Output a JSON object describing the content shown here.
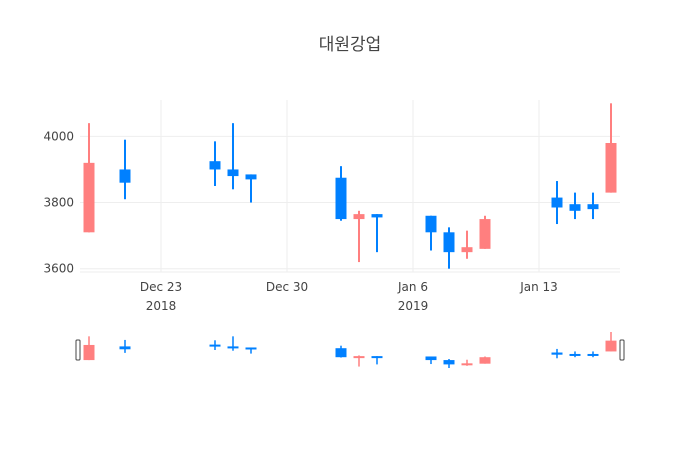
{
  "chart_data": {
    "type": "candlestick",
    "title": "대원강업",
    "xlabel": "",
    "ylabel": "",
    "x_ticks": [
      {
        "date": "2018-12-23",
        "label": "Dec 23",
        "sub": "2018"
      },
      {
        "date": "2018-12-30",
        "label": "Dec 30",
        "sub": ""
      },
      {
        "date": "2019-01-06",
        "label": "Jan 6",
        "sub": "2019"
      },
      {
        "date": "2019-01-13",
        "label": "Jan 13",
        "sub": ""
      }
    ],
    "y_ticks": [
      3600,
      3800,
      4000
    ],
    "y_tick_labels": [
      "3600",
      "3800",
      "4000"
    ],
    "ylim": [
      3590,
      4110
    ],
    "xlim": [
      "2018-12-19",
      "2019-01-17"
    ],
    "grid": true,
    "rangeslider": true,
    "increasing_color": "#FF7F7F",
    "decreasing_color": "#0080FF",
    "candles": [
      {
        "date": "2018-12-19",
        "open": 3710,
        "high": 4040,
        "low": 3710,
        "close": 3920
      },
      {
        "date": "2018-12-21",
        "open": 3900,
        "high": 3990,
        "low": 3810,
        "close": 3860
      },
      {
        "date": "2018-12-26",
        "open": 3925,
        "high": 3985,
        "low": 3850,
        "close": 3900
      },
      {
        "date": "2018-12-27",
        "open": 3900,
        "high": 4040,
        "low": 3840,
        "close": 3880
      },
      {
        "date": "2018-12-28",
        "open": 3885,
        "high": 3885,
        "low": 3800,
        "close": 3870
      },
      {
        "date": "2019-01-02",
        "open": 3875,
        "high": 3910,
        "low": 3745,
        "close": 3750
      },
      {
        "date": "2019-01-03",
        "open": 3750,
        "high": 3775,
        "low": 3620,
        "close": 3765
      },
      {
        "date": "2019-01-04",
        "open": 3765,
        "high": 3765,
        "low": 3650,
        "close": 3755
      },
      {
        "date": "2019-01-07",
        "open": 3760,
        "high": 3760,
        "low": 3655,
        "close": 3710
      },
      {
        "date": "2019-01-08",
        "open": 3710,
        "high": 3725,
        "low": 3600,
        "close": 3650
      },
      {
        "date": "2019-01-09",
        "open": 3650,
        "high": 3715,
        "low": 3630,
        "close": 3665
      },
      {
        "date": "2019-01-10",
        "open": 3660,
        "high": 3760,
        "low": 3660,
        "close": 3750
      },
      {
        "date": "2019-01-14",
        "open": 3815,
        "high": 3865,
        "low": 3735,
        "close": 3785
      },
      {
        "date": "2019-01-15",
        "open": 3795,
        "high": 3830,
        "low": 3750,
        "close": 3775
      },
      {
        "date": "2019-01-16",
        "open": 3795,
        "high": 3830,
        "low": 3750,
        "close": 3780
      },
      {
        "date": "2019-01-17",
        "open": 3830,
        "high": 4100,
        "low": 3830,
        "close": 3980
      }
    ]
  }
}
